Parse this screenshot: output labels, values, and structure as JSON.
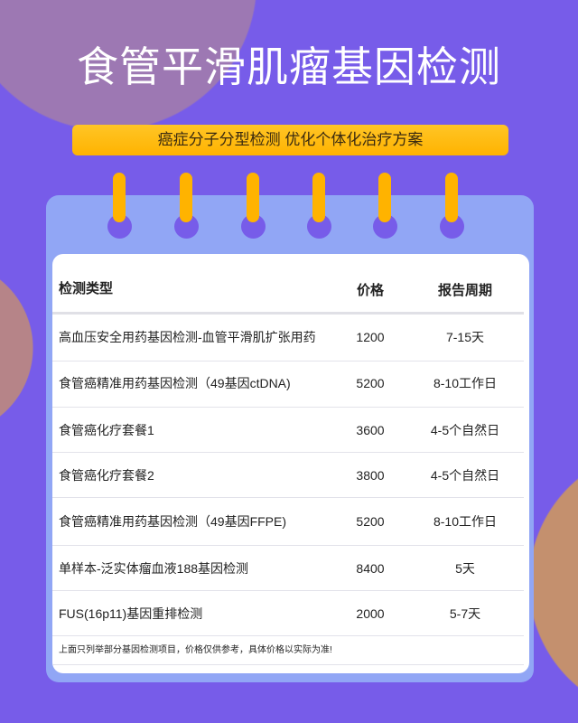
{
  "title": "食管平滑肌瘤基因检测",
  "banner": "癌症分子分型检测 优化个体化治疗方案",
  "colors": {
    "background": "#775CE9",
    "card": "#91A6F5",
    "accent": "#FFB300"
  },
  "table": {
    "headers": [
      "检测类型",
      "价格",
      "报告周期"
    ],
    "rows": [
      {
        "type": "高血压安全用药基因检测-血管平滑肌扩张用药",
        "price": "1200",
        "period": "7-15天"
      },
      {
        "type": "食管癌精准用药基因检测（49基因ctDNA)",
        "price": "5200",
        "period": "8-10工作日"
      },
      {
        "type": "食管癌化疗套餐1",
        "price": "3600",
        "period": "4-5个自然日"
      },
      {
        "type": "食管癌化疗套餐2",
        "price": "3800",
        "period": "4-5个自然日"
      },
      {
        "type": "食管癌精准用药基因检测（49基因FFPE)",
        "price": "5200",
        "period": "8-10工作日"
      },
      {
        "type": "单样本-泛实体瘤血液188基因检测",
        "price": "8400",
        "period": "5天"
      },
      {
        "type": "FUS(16p11)基因重排检测",
        "price": "2000",
        "period": "5-7天"
      }
    ],
    "note": "上面只列举部分基因检测项目，价格仅供参考，具体价格以实际为准!"
  }
}
